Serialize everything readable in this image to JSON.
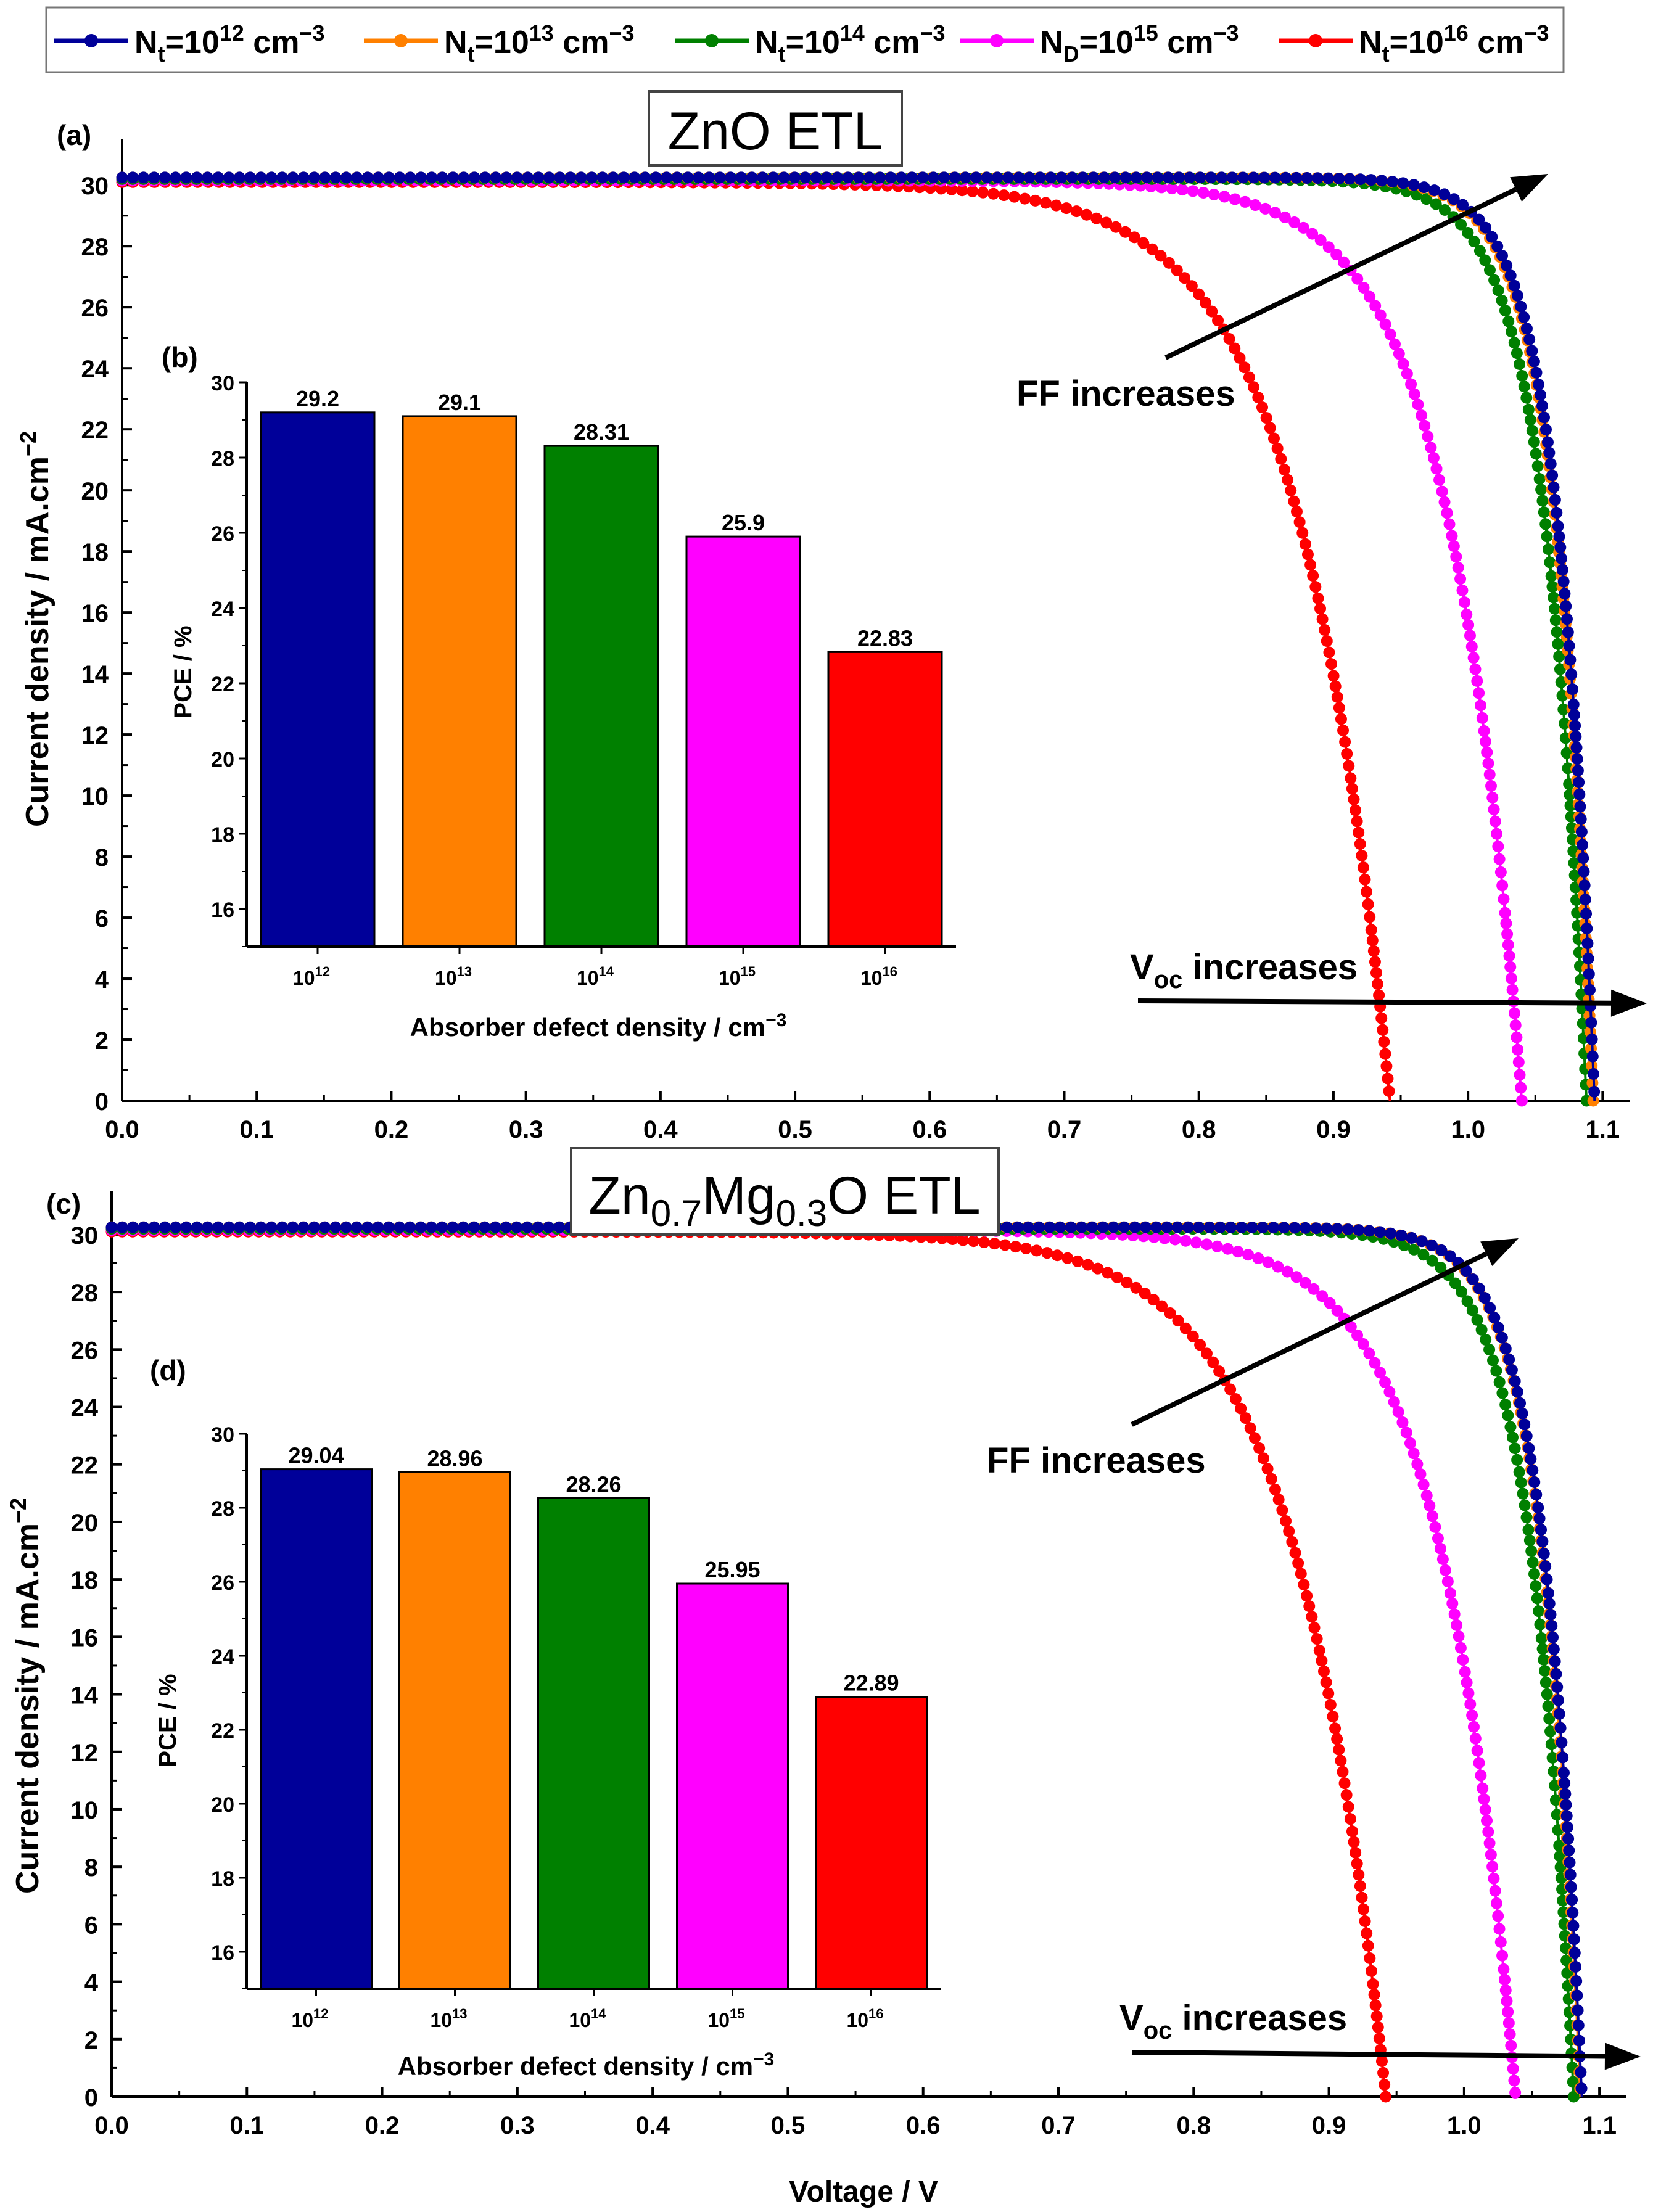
{
  "legend": [
    {
      "base": "N",
      "sub": "t",
      "mid": "=10",
      "sup": "12",
      "unit": " cm",
      "unitsup": "−3",
      "color": "#000099"
    },
    {
      "base": "N",
      "sub": "t",
      "mid": "=10",
      "sup": "13",
      "unit": " cm",
      "unitsup": "−3",
      "color": "#FF8000"
    },
    {
      "base": "N",
      "sub": "t",
      "mid": "=10",
      "sup": "14",
      "unit": " cm",
      "unitsup": "−3",
      "color": "#008000"
    },
    {
      "base": "N",
      "sub": "D",
      "mid": "=10",
      "sup": "15",
      "unit": " cm",
      "unitsup": "−3",
      "color": "#FF00FF"
    },
    {
      "base": "N",
      "sub": "t",
      "mid": "=10",
      "sup": "16",
      "unit": " cm",
      "unitsup": "−3",
      "color": "#FF0000"
    }
  ],
  "panel_a": {
    "label": "(a)",
    "title": "ZnO ETL",
    "ff_text": "FF increases",
    "voc_text_base": "V",
    "voc_text_sub": "oc",
    "voc_text_rest": " increases"
  },
  "panel_c": {
    "label": "(c)",
    "title_parts": [
      "Zn",
      "0.7",
      "Mg",
      "0.3",
      "O ETL"
    ],
    "ff_text": "FF increases",
    "voc_text_base": "V",
    "voc_text_sub": "oc",
    "voc_text_rest": " increases"
  },
  "inset_b": {
    "label": "(b)"
  },
  "inset_d": {
    "label": "(d)"
  },
  "jv_axes": {
    "ylabel_main": "Current density / mA.cm",
    "ylabel_sup": "−2",
    "xlabel": "Voltage / V"
  },
  "inset_axes": {
    "ylabel": "PCE / %",
    "xlabel_main": "Absorber defect density / cm",
    "xlabel_sup": "−3"
  },
  "chart_data": [
    {
      "type": "line",
      "panel": "a",
      "title": "ZnO ETL",
      "xlabel": "Voltage / V",
      "ylabel": "Current density / mA.cm−2",
      "xlim": [
        0,
        1.12
      ],
      "ylim": [
        0,
        31.5
      ],
      "xticks": [
        "0.0",
        "0.1",
        "0.2",
        "0.3",
        "0.4",
        "0.5",
        "0.6",
        "0.7",
        "0.8",
        "0.9",
        "1.0",
        "1.1"
      ],
      "yticks": [
        "0",
        "2",
        "4",
        "6",
        "8",
        "10",
        "12",
        "14",
        "16",
        "18",
        "20",
        "22",
        "24",
        "26",
        "28",
        "30"
      ],
      "series": [
        {
          "name": "Nt=10^12 cm^-3",
          "jsc": 30.25,
          "voc": 1.094,
          "vmp": 0.985,
          "jmp": 29.65,
          "color": "#000099"
        },
        {
          "name": "Nt=10^13 cm^-3",
          "jsc": 30.25,
          "voc": 1.093,
          "vmp": 0.98,
          "jmp": 29.7,
          "color": "#FF8000"
        },
        {
          "name": "Nt=10^14 cm^-3",
          "jsc": 30.2,
          "voc": 1.088,
          "vmp": 0.945,
          "jmp": 29.9,
          "color": "#008000"
        },
        {
          "name": "ND=10^15 cm^-3",
          "jsc": 30.15,
          "voc": 1.04,
          "vmp": 0.845,
          "jmp": 29.3,
          "color": "#FF00FF"
        },
        {
          "name": "Nt=10^16 cm^-3",
          "jsc": 30.1,
          "voc": 0.942,
          "vmp": 0.705,
          "jmp": 29.2,
          "color": "#FF0000"
        }
      ]
    },
    {
      "type": "bar",
      "panel": "b",
      "xlabel": "Absorber defect density / cm−3",
      "ylabel": "PCE / %",
      "ylim": [
        15,
        30
      ],
      "yticks": [
        "16",
        "18",
        "20",
        "22",
        "24",
        "26",
        "28",
        "30"
      ],
      "categories": [
        {
          "base": "10",
          "sup": "12"
        },
        {
          "base": "10",
          "sup": "13"
        },
        {
          "base": "10",
          "sup": "14"
        },
        {
          "base": "10",
          "sup": "15"
        },
        {
          "base": "10",
          "sup": "16"
        }
      ],
      "values": [
        29.2,
        29.1,
        28.31,
        25.9,
        22.83
      ],
      "value_labels": [
        "29.2",
        "29.1",
        "28.31",
        "25.9",
        "22.83"
      ],
      "colors": [
        "#000099",
        "#FF8000",
        "#008000",
        "#FF00FF",
        "#FF0000"
      ]
    },
    {
      "type": "line",
      "panel": "c",
      "title": "Zn0.7Mg0.3O ETL",
      "xlabel": "Voltage / V",
      "ylabel": "Current density / mA.cm−2",
      "xlim": [
        0,
        1.12
      ],
      "ylim": [
        0,
        31.5
      ],
      "xticks": [
        "0.0",
        "0.1",
        "0.2",
        "0.3",
        "0.4",
        "0.5",
        "0.6",
        "0.7",
        "0.8",
        "0.9",
        "1.0",
        "1.1"
      ],
      "yticks": [
        "0",
        "2",
        "4",
        "6",
        "8",
        "10",
        "12",
        "14",
        "16",
        "18",
        "20",
        "22",
        "24",
        "26",
        "28",
        "30"
      ],
      "series": [
        {
          "name": "Nt=10^12 cm^-3",
          "jsc": 30.25,
          "voc": 1.087,
          "vmp": 0.975,
          "jmp": 29.65,
          "color": "#000099"
        },
        {
          "name": "Nt=10^13 cm^-3",
          "jsc": 30.25,
          "voc": 1.086,
          "vmp": 0.972,
          "jmp": 29.7,
          "color": "#FF8000"
        },
        {
          "name": "Nt=10^14 cm^-3",
          "jsc": 30.2,
          "voc": 1.081,
          "vmp": 0.935,
          "jmp": 29.9,
          "color": "#008000"
        },
        {
          "name": "ND=10^15 cm^-3",
          "jsc": 30.15,
          "voc": 1.038,
          "vmp": 0.84,
          "jmp": 29.3,
          "color": "#FF00FF"
        },
        {
          "name": "Nt=10^16 cm^-3",
          "jsc": 30.1,
          "voc": 0.942,
          "vmp": 0.705,
          "jmp": 29.2,
          "color": "#FF0000"
        }
      ]
    },
    {
      "type": "bar",
      "panel": "d",
      "xlabel": "Absorber defect density / cm−3",
      "ylabel": "PCE / %",
      "ylim": [
        15,
        30
      ],
      "yticks": [
        "16",
        "18",
        "20",
        "22",
        "24",
        "26",
        "28",
        "30"
      ],
      "categories": [
        {
          "base": "10",
          "sup": "12"
        },
        {
          "base": "10",
          "sup": "13"
        },
        {
          "base": "10",
          "sup": "14"
        },
        {
          "base": "10",
          "sup": "15"
        },
        {
          "base": "10",
          "sup": "16"
        }
      ],
      "values": [
        29.04,
        28.96,
        28.26,
        25.95,
        22.89
      ],
      "value_labels": [
        "29.04",
        "28.96",
        "28.26",
        "25.95",
        "22.89"
      ],
      "colors": [
        "#000099",
        "#FF8000",
        "#008000",
        "#FF00FF",
        "#FF0000"
      ]
    }
  ]
}
